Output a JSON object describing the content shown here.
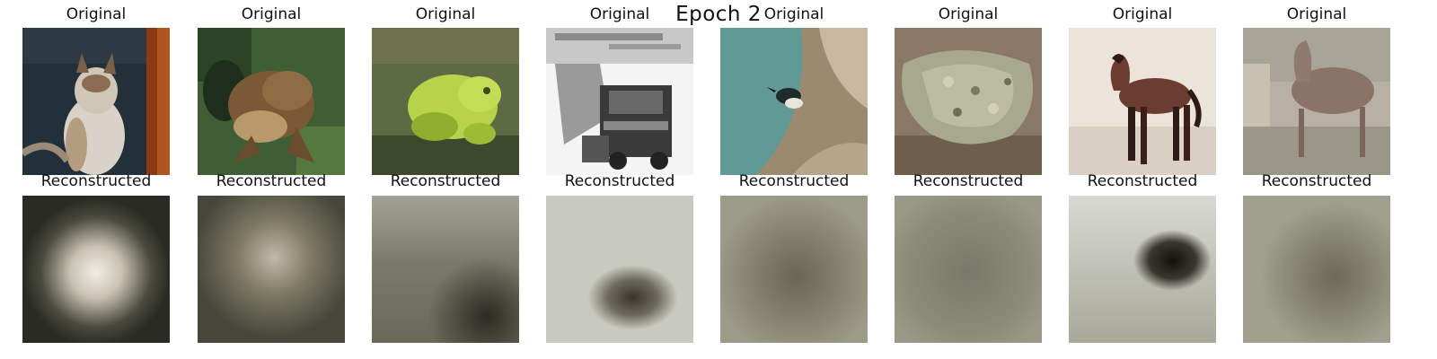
{
  "figure": {
    "title": "Epoch 2",
    "original_label": "Original",
    "reconstructed_label": "Reconstructed"
  },
  "originals": [
    {
      "subject": "cat",
      "colors": {
        "bg": "#243039",
        "accent": "#8a3a14",
        "main": "#d9d2c8",
        "detail": "#7a6048"
      }
    },
    {
      "subject": "frog",
      "colors": {
        "bg": "#3f5e36",
        "accent": "#1f2e1c",
        "main": "#7a5a36",
        "detail": "#b89a6a"
      }
    },
    {
      "subject": "frog",
      "colors": {
        "bg": "#5e6a44",
        "accent": "#3b4a2c",
        "main": "#b8d24a",
        "detail": "#8fae2e"
      }
    },
    {
      "subject": "truck",
      "colors": {
        "bg": "#f4f4f4",
        "accent": "#9a9a9a",
        "main": "#3a3a3a",
        "detail": "#6a6a6a"
      }
    },
    {
      "subject": "bird",
      "colors": {
        "bg": "#5f9a94",
        "accent": "#9c8a70",
        "main": "#c9b8a0",
        "detail": "#1f2a2a"
      }
    },
    {
      "subject": "frog",
      "colors": {
        "bg": "#8a7866",
        "accent": "#5e4e3c",
        "main": "#a8a88e",
        "detail": "#d4d0b8"
      }
    },
    {
      "subject": "horse",
      "colors": {
        "bg": "#ece4da",
        "accent": "#cbbfae",
        "main": "#6a3c32",
        "detail": "#2e1a16"
      }
    },
    {
      "subject": "deer",
      "colors": {
        "bg": "#b8b0a4",
        "accent": "#9a9688",
        "main": "#8a7468",
        "detail": "#c8c0b0"
      }
    }
  ],
  "reconstructions": [
    {
      "colors": {
        "bg": "#2e2e28",
        "blob": "#e6e2d6"
      }
    },
    {
      "colors": {
        "bg": "#55533f",
        "blob": "#b9b3a0"
      }
    },
    {
      "colors": {
        "bg": "#8a8676",
        "blob": "#2e2c22"
      }
    },
    {
      "colors": {
        "bg": "#c8cac0",
        "blob": "#3a342c"
      }
    },
    {
      "colors": {
        "bg": "#8c8a78",
        "blob": "#6a6656"
      }
    },
    {
      "colors": {
        "bg": "#8e8c7a",
        "blob": "#7a7868"
      }
    },
    {
      "colors": {
        "bg": "#d2d4cc",
        "blob": "#15120e"
      }
    },
    {
      "colors": {
        "bg": "#908e7c",
        "blob": "#6e6a5a"
      }
    }
  ]
}
